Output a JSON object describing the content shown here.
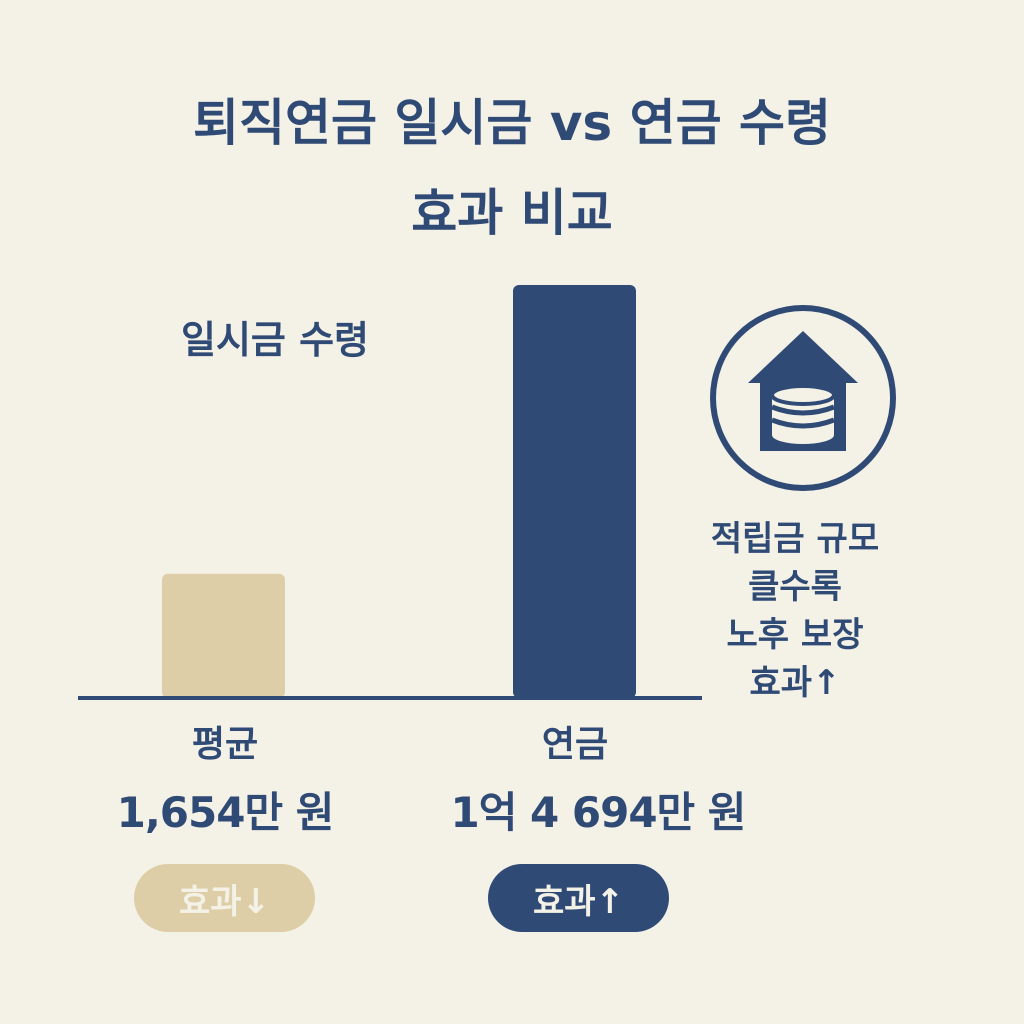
{
  "title": {
    "line1": "퇴직연금 일시금 vs 연금 수령",
    "line2": "효과 비교"
  },
  "lump_sum_label": "일시금 수령",
  "chart_data": {
    "type": "bar",
    "title": "퇴직연금 일시금 vs 연금 수령 효과 비교",
    "categories": [
      "평균",
      "연금"
    ],
    "values": [
      1654,
      14694
    ],
    "value_labels": [
      "1,654만 원",
      "1억 4 694만 원"
    ],
    "unit": "만 원",
    "colors": [
      "#ddcea8",
      "#2f4a75"
    ],
    "ylim": [
      0,
      14694
    ],
    "grid": false
  },
  "columns": [
    {
      "label": "평균",
      "value_text": "1,654만 원",
      "effect": "효과↓"
    },
    {
      "label": "연금",
      "value_text": "1억 4 694만 원",
      "effect": "효과↑"
    }
  ],
  "side_note": {
    "lines": [
      "적립금 규모",
      "클수록",
      "노후 보장",
      "효과↑"
    ]
  },
  "icon": "house-coins-icon",
  "colors": {
    "background": "#f4f1e7",
    "navy": "#2f4a75",
    "beige": "#ddcea8"
  }
}
